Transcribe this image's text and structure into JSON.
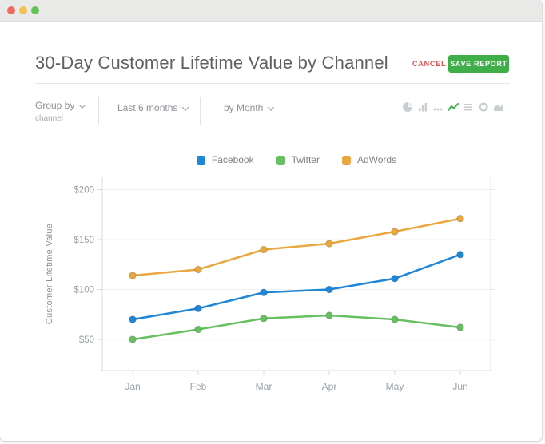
{
  "window": {
    "traffic_lights": [
      {
        "name": "close-button",
        "color": "#ee6a5f"
      },
      {
        "name": "minimize-button",
        "color": "#f5bf4f"
      },
      {
        "name": "zoom-button",
        "color": "#61c554"
      }
    ]
  },
  "header": {
    "title": "30-Day Customer Lifetime Value by Channel",
    "cancel_label": "CANCEL",
    "save_label": "SAVE REPORT",
    "cancel_color": "#d9534f",
    "save_color": "#3fae49"
  },
  "filters": {
    "group_by_label": "Group by",
    "group_by_value": "channel",
    "date_range": "Last 6 months",
    "interval": "by Month"
  },
  "chart_toolbar": {
    "icon_color": "#c9ced2",
    "active_color": "#3fae49",
    "icons": [
      {
        "name": "pie-chart",
        "active": false
      },
      {
        "name": "bar-chart",
        "active": false
      },
      {
        "name": "scatter",
        "active": false
      },
      {
        "name": "line-chart",
        "active": true
      },
      {
        "name": "table",
        "active": false
      },
      {
        "name": "donut-chart",
        "active": false
      },
      {
        "name": "area-chart",
        "active": false
      }
    ]
  },
  "chart_data": {
    "type": "line",
    "title": "",
    "x": [
      "Jan",
      "Feb",
      "Mar",
      "Apr",
      "May",
      "Jun"
    ],
    "series": [
      {
        "name": "Facebook",
        "color": "#1f87d8",
        "values": [
          70,
          81,
          97,
          100,
          111,
          135
        ]
      },
      {
        "name": "Twitter",
        "color": "#67c05f",
        "values": [
          50,
          60,
          71,
          74,
          70,
          62
        ]
      },
      {
        "name": "AdWords",
        "color": "#e9a83f",
        "values": [
          114,
          120,
          140,
          146,
          158,
          171
        ]
      }
    ],
    "xlabel": "",
    "ylabel": "Customer Lifetime Value",
    "yticks": [
      50,
      100,
      150,
      200
    ],
    "ytick_prefix": "$",
    "ylim": [
      36,
      214
    ],
    "grid": true,
    "legend_position": "top"
  }
}
